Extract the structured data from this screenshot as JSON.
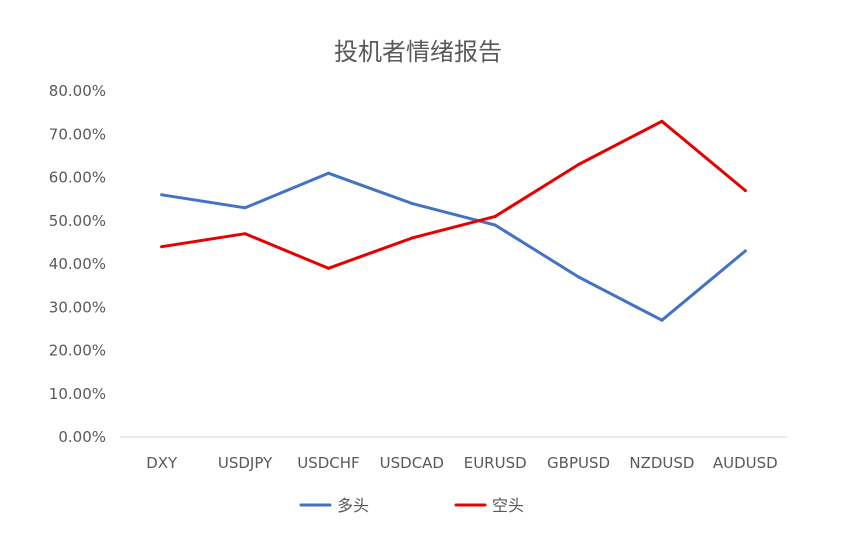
{
  "chart_data": {
    "type": "line",
    "title": "投机者情绪报告",
    "xlabel": "",
    "ylabel": "",
    "categories": [
      "DXY",
      "USDJPY",
      "USDCHF",
      "USDCAD",
      "EURUSD",
      "GBPUSD",
      "NZDUSD",
      "AUDUSD"
    ],
    "ylim": [
      0,
      80
    ],
    "y_ticks": [
      0,
      10,
      20,
      30,
      40,
      50,
      60,
      70,
      80
    ],
    "y_tick_labels": [
      "0.00%",
      "10.00%",
      "20.00%",
      "30.00%",
      "40.00%",
      "50.00%",
      "60.00%",
      "70.00%",
      "80.00%"
    ],
    "grid": false,
    "legend_position": "bottom",
    "series": [
      {
        "name": "多头",
        "color": "#4472C4",
        "values": [
          56,
          53,
          61,
          54,
          49,
          37,
          27,
          43
        ]
      },
      {
        "name": "空头",
        "color": "#E80000",
        "values": [
          44,
          47,
          39,
          46,
          51,
          63,
          73,
          57
        ]
      }
    ]
  }
}
